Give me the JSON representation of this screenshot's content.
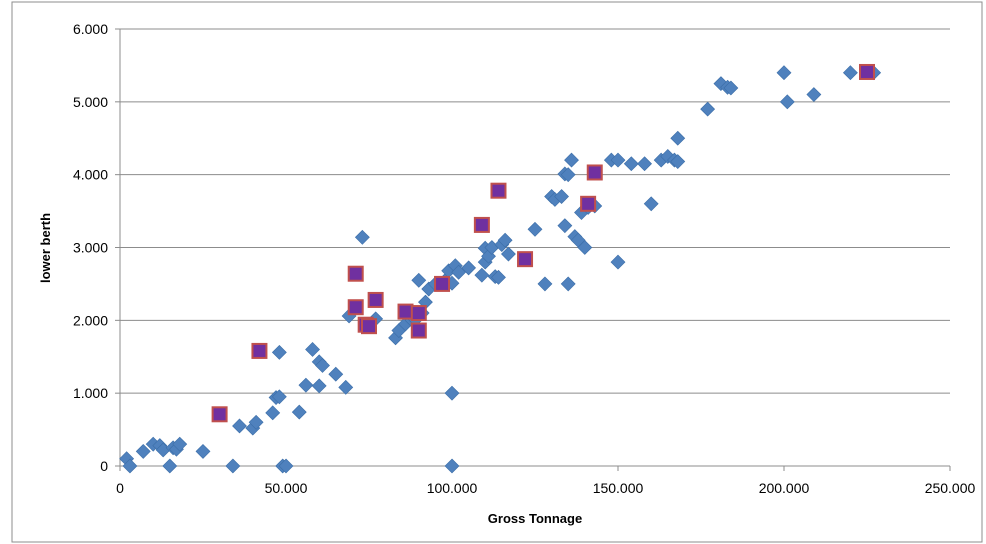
{
  "chart_data": {
    "type": "scatter",
    "title": "",
    "xlabel": "Gross Tonnage",
    "ylabel": "lower berth",
    "xlim": [
      0,
      250000
    ],
    "ylim": [
      0,
      6000
    ],
    "x_ticks": [
      0,
      50000,
      100000,
      150000,
      200000,
      250000
    ],
    "x_tick_labels": [
      "0",
      "50.000",
      "100.000",
      "150.000",
      "200.000",
      "250.000"
    ],
    "y_ticks": [
      0,
      1000,
      2000,
      3000,
      4000,
      5000,
      6000
    ],
    "y_tick_labels": [
      "0",
      "1.000",
      "2.000",
      "3.000",
      "4.000",
      "5.000",
      "6.000"
    ],
    "grid": "horizontal",
    "legend": "none",
    "colors": {
      "series_1": "#4F81BD",
      "series_2_fill": "#7030A0",
      "series_2_border": "#C0504D",
      "gridline": "#8c8c8c",
      "axis": "#8c8c8c",
      "outer_border": "#8c8c8c"
    },
    "series": [
      {
        "marker": "diamond",
        "points": [
          [
            2000,
            100
          ],
          [
            3000,
            0
          ],
          [
            7000,
            200
          ],
          [
            10000,
            300
          ],
          [
            12000,
            280
          ],
          [
            13000,
            220
          ],
          [
            15000,
            0
          ],
          [
            16000,
            250
          ],
          [
            17000,
            230
          ],
          [
            18000,
            300
          ],
          [
            25000,
            200
          ],
          [
            34000,
            0
          ],
          [
            36000,
            550
          ],
          [
            40000,
            520
          ],
          [
            41000,
            600
          ],
          [
            46000,
            730
          ],
          [
            47000,
            940
          ],
          [
            48000,
            950
          ],
          [
            48000,
            1560
          ],
          [
            49000,
            0
          ],
          [
            50000,
            0
          ],
          [
            54000,
            740
          ],
          [
            56000,
            1110
          ],
          [
            58000,
            1600
          ],
          [
            60000,
            1100
          ],
          [
            60000,
            1430
          ],
          [
            61000,
            1380
          ],
          [
            65000,
            1260
          ],
          [
            68000,
            1080
          ],
          [
            69000,
            2060
          ],
          [
            73000,
            3140
          ],
          [
            77000,
            2020
          ],
          [
            83000,
            1760
          ],
          [
            84000,
            1860
          ],
          [
            86000,
            1950
          ],
          [
            88000,
            2000
          ],
          [
            89000,
            2010
          ],
          [
            90000,
            2550
          ],
          [
            90000,
            1870
          ],
          [
            91000,
            2100
          ],
          [
            92000,
            2250
          ],
          [
            93000,
            2430
          ],
          [
            95000,
            2500
          ],
          [
            98000,
            2550
          ],
          [
            99000,
            2680
          ],
          [
            100000,
            2510
          ],
          [
            100000,
            1000
          ],
          [
            100000,
            0
          ],
          [
            101000,
            2750
          ],
          [
            102000,
            2660
          ],
          [
            105000,
            2720
          ],
          [
            109000,
            2620
          ],
          [
            110000,
            2800
          ],
          [
            110000,
            2990
          ],
          [
            111000,
            2880
          ],
          [
            112000,
            3000
          ],
          [
            113000,
            2600
          ],
          [
            114000,
            2590
          ],
          [
            115000,
            3040
          ],
          [
            116000,
            3100
          ],
          [
            117000,
            2910
          ],
          [
            125000,
            3250
          ],
          [
            128000,
            2500
          ],
          [
            130000,
            3700
          ],
          [
            131000,
            3660
          ],
          [
            133000,
            3700
          ],
          [
            134000,
            4010
          ],
          [
            134000,
            3300
          ],
          [
            135000,
            4000
          ],
          [
            135000,
            2500
          ],
          [
            136000,
            4200
          ],
          [
            137000,
            3150
          ],
          [
            138000,
            3100
          ],
          [
            139000,
            3480
          ],
          [
            140000,
            3000
          ],
          [
            141000,
            3550
          ],
          [
            143000,
            3570
          ],
          [
            148000,
            4200
          ],
          [
            150000,
            4200
          ],
          [
            150000,
            2800
          ],
          [
            154000,
            4150
          ],
          [
            158000,
            4150
          ],
          [
            160000,
            3600
          ],
          [
            163000,
            4200
          ],
          [
            165000,
            4250
          ],
          [
            167000,
            4200
          ],
          [
            168000,
            4500
          ],
          [
            168000,
            4180
          ],
          [
            177000,
            4900
          ],
          [
            181000,
            5250
          ],
          [
            183000,
            5200
          ],
          [
            184000,
            5190
          ],
          [
            200000,
            5400
          ],
          [
            201000,
            5000
          ],
          [
            209000,
            5100
          ],
          [
            220000,
            5400
          ],
          [
            227000,
            5400
          ]
        ]
      },
      {
        "marker": "square",
        "points": [
          [
            30000,
            710
          ],
          [
            42000,
            1580
          ],
          [
            71000,
            2640
          ],
          [
            71000,
            2180
          ],
          [
            74000,
            1940
          ],
          [
            75000,
            1920
          ],
          [
            77000,
            2280
          ],
          [
            86000,
            2120
          ],
          [
            90000,
            1860
          ],
          [
            90000,
            2100
          ],
          [
            97000,
            2500
          ],
          [
            109000,
            3310
          ],
          [
            114000,
            3780
          ],
          [
            122000,
            2840
          ],
          [
            141000,
            3600
          ],
          [
            143000,
            4030
          ],
          [
            225000,
            5410
          ]
        ]
      }
    ]
  }
}
